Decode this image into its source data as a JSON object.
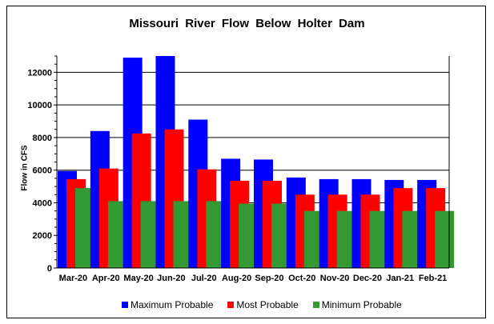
{
  "chart_data": {
    "type": "bar",
    "title": "Missouri  River  Flow  Below  Holter  Dam",
    "ylabel": "Flow in CFS",
    "xlabel": "",
    "ylim": [
      0,
      13000
    ],
    "yticks": [
      "0",
      "2000",
      "4000",
      "6000",
      "8000",
      "10000",
      "12000"
    ],
    "grid": "horizontal",
    "legend_position": "bottom",
    "categories": [
      "Mar-20",
      "Apr-20",
      "May-20",
      "Jun-20",
      "Jul-20",
      "Aug-20",
      "Sep-20",
      "Oct-20",
      "Nov-20",
      "Dec-20",
      "Jan-21",
      "Feb-21"
    ],
    "series": [
      {
        "name": "Maximum Probable",
        "color": "#0000ff",
        "values": [
          5950,
          8400,
          12900,
          13000,
          9100,
          6700,
          6650,
          5550,
          5450,
          5450,
          5400,
          5400
        ]
      },
      {
        "name": "Most Probable",
        "color": "#ff0000",
        "values": [
          5450,
          6100,
          8250,
          8500,
          6050,
          5350,
          5350,
          4500,
          4500,
          4500,
          4900,
          4900
        ]
      },
      {
        "name": "Minimum Probable",
        "color": "#339933",
        "values": [
          4900,
          4100,
          4100,
          4100,
          4100,
          3950,
          3950,
          3500,
          3500,
          3500,
          3500,
          3500
        ]
      }
    ]
  }
}
